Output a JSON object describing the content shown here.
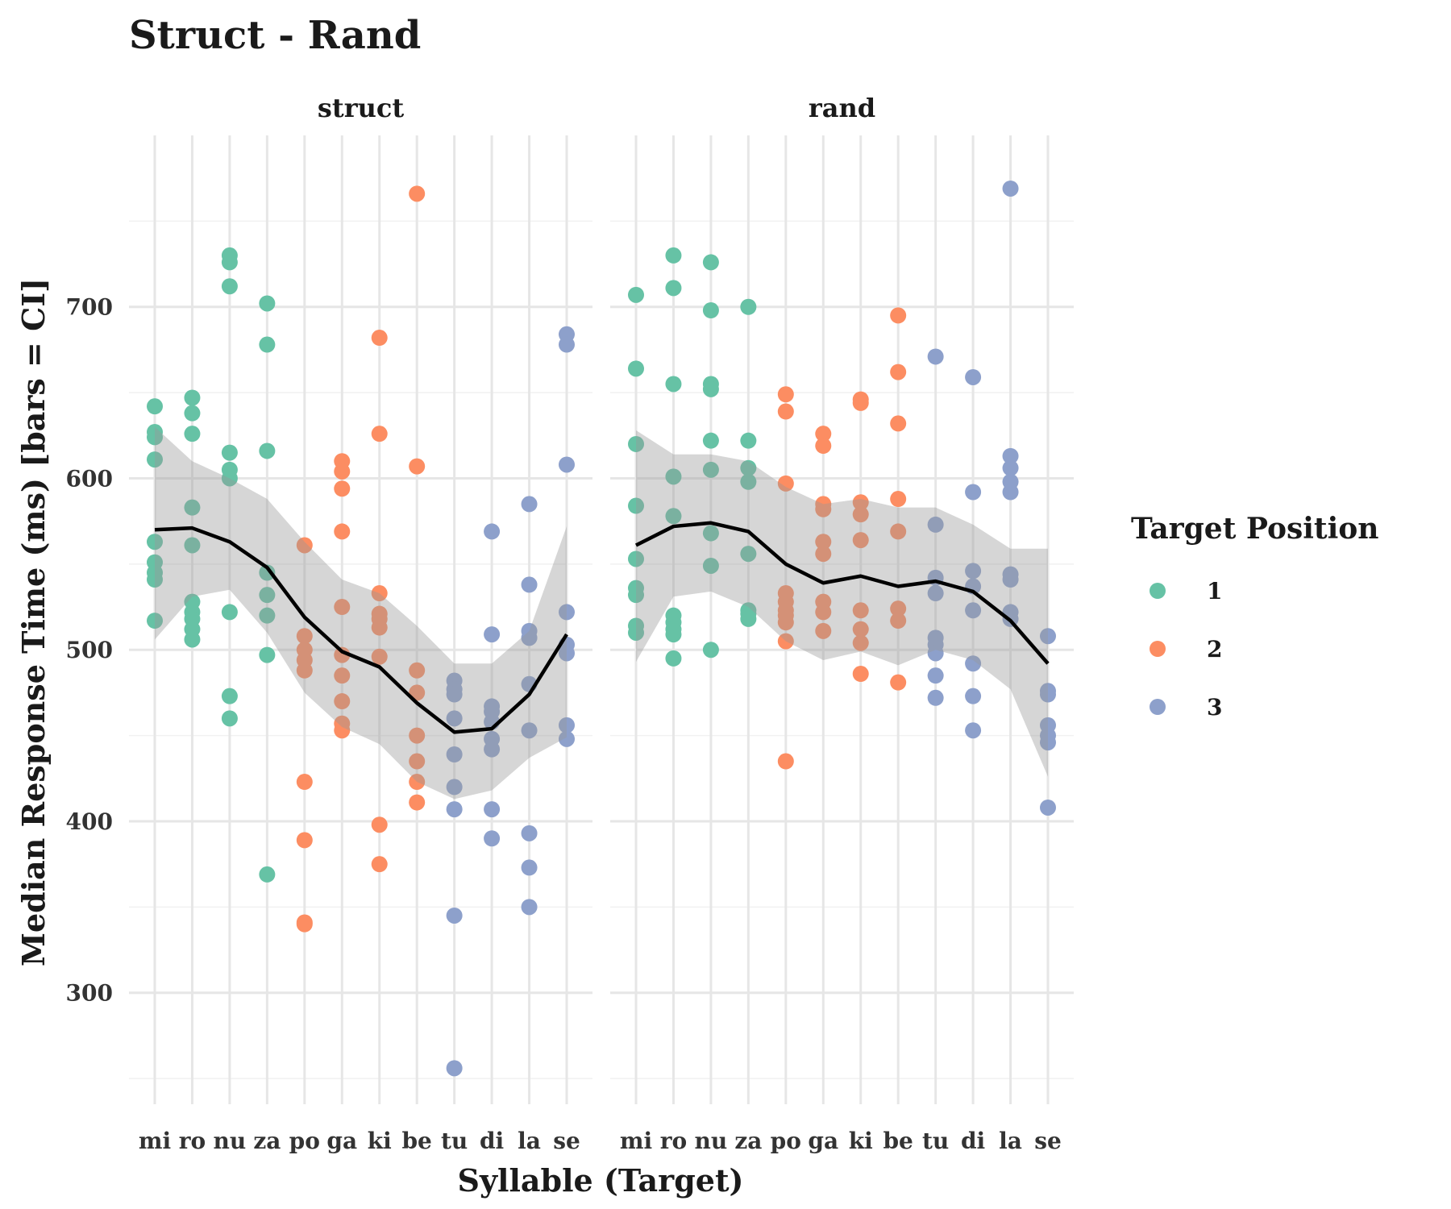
{
  "chart_data": {
    "type": "scatter",
    "title": "Struct - Rand",
    "xlabel": "Syllable (Target)",
    "ylabel": "Median Response Time (ms) [bars = CI]",
    "ylim": [
      235,
      800
    ],
    "y_ticks": [
      300,
      400,
      500,
      600,
      700
    ],
    "grid": true,
    "legend": {
      "title": "Target Position",
      "placement": "right",
      "entries": [
        {
          "label": "1",
          "color": "#66c2a5"
        },
        {
          "label": "2",
          "color": "#fc8d62"
        },
        {
          "label": "3",
          "color": "#8da0cb"
        }
      ]
    },
    "categories": [
      "mi",
      "ro",
      "nu",
      "za",
      "po",
      "ga",
      "ki",
      "be",
      "tu",
      "di",
      "la",
      "se"
    ],
    "panels": [
      {
        "strip": "struct",
        "points": [
          {
            "x": "mi",
            "group": "1",
            "y": [
              642,
              627,
              624,
              611,
              563,
              551,
              545,
              541,
              517
            ]
          },
          {
            "x": "ro",
            "group": "1",
            "y": [
              647,
              638,
              626,
              583,
              561,
              528,
              522,
              518,
              512,
              506
            ]
          },
          {
            "x": "nu",
            "group": "1",
            "y": [
              730,
              726,
              712,
              615,
              605,
              600,
              522,
              473,
              460
            ]
          },
          {
            "x": "za",
            "group": "1",
            "y": [
              702,
              678,
              616,
              545,
              532,
              520,
              497,
              369
            ]
          },
          {
            "x": "po",
            "group": "2",
            "y": [
              561,
              508,
              500,
              494,
              488,
              423,
              389,
              341,
              340
            ]
          },
          {
            "x": "ga",
            "group": "2",
            "y": [
              610,
              604,
              594,
              569,
              525,
              497,
              485,
              470,
              457,
              453
            ]
          },
          {
            "x": "ki",
            "group": "2",
            "y": [
              682,
              626,
              533,
              521,
              518,
              513,
              496,
              398,
              375
            ]
          },
          {
            "x": "be",
            "group": "2",
            "y": [
              766,
              607,
              488,
              475,
              450,
              435,
              423,
              411
            ]
          },
          {
            "x": "tu",
            "group": "3",
            "y": [
              482,
              477,
              474,
              460,
              439,
              420,
              407,
              345,
              256
            ]
          },
          {
            "x": "di",
            "group": "3",
            "y": [
              569,
              509,
              467,
              464,
              458,
              448,
              442,
              407,
              390
            ]
          },
          {
            "x": "la",
            "group": "3",
            "y": [
              585,
              538,
              511,
              507,
              480,
              453,
              393,
              373,
              350
            ]
          },
          {
            "x": "se",
            "group": "3",
            "y": [
              684,
              678,
              608,
              522,
              503,
              498,
              456,
              448
            ]
          }
        ],
        "mean_line": [
          570,
          571,
          563,
          548,
          519,
          499,
          490,
          469,
          452,
          454,
          474,
          509
        ],
        "ci_lower": [
          506,
          531,
          535,
          510,
          475,
          455,
          445,
          423,
          413,
          418,
          437,
          449
        ],
        "ci_upper": [
          630,
          610,
          600,
          588,
          563,
          541,
          533,
          514,
          492,
          492,
          511,
          572
        ]
      },
      {
        "strip": "rand",
        "points": [
          {
            "x": "mi",
            "group": "1",
            "y": [
              707,
              664,
              620,
              584,
              553,
              536,
              532,
              514,
              510
            ]
          },
          {
            "x": "ro",
            "group": "1",
            "y": [
              730,
              711,
              655,
              601,
              578,
              520,
              516,
              512,
              509,
              495
            ]
          },
          {
            "x": "nu",
            "group": "1",
            "y": [
              726,
              698,
              655,
              652,
              622,
              605,
              568,
              549,
              500
            ]
          },
          {
            "x": "za",
            "group": "1",
            "y": [
              700,
              622,
              606,
              598,
              556,
              523,
              521,
              518
            ]
          },
          {
            "x": "po",
            "group": "2",
            "y": [
              649,
              639,
              597,
              533,
              528,
              523,
              520,
              516,
              505,
              435
            ]
          },
          {
            "x": "ga",
            "group": "2",
            "y": [
              626,
              619,
              585,
              582,
              563,
              556,
              528,
              522,
              511
            ]
          },
          {
            "x": "ki",
            "group": "2",
            "y": [
              646,
              644,
              586,
              579,
              564,
              523,
              512,
              504,
              486
            ]
          },
          {
            "x": "be",
            "group": "2",
            "y": [
              695,
              662,
              632,
              588,
              569,
              524,
              517,
              481
            ]
          },
          {
            "x": "tu",
            "group": "3",
            "y": [
              671,
              573,
              542,
              533,
              507,
              503,
              498,
              485,
              472
            ]
          },
          {
            "x": "di",
            "group": "3",
            "y": [
              659,
              592,
              546,
              537,
              523,
              492,
              473,
              453
            ]
          },
          {
            "x": "la",
            "group": "3",
            "y": [
              769,
              613,
              606,
              598,
              592,
              544,
              541,
              522,
              518
            ]
          },
          {
            "x": "se",
            "group": "3",
            "y": [
              508,
              476,
              474,
              456,
              450,
              446,
              408
            ]
          }
        ],
        "mean_line": [
          561,
          572,
          574,
          569,
          550,
          539,
          543,
          537,
          540,
          534,
          517,
          492
        ],
        "ci_lower": [
          493,
          531,
          534,
          525,
          505,
          494,
          499,
          491,
          500,
          494,
          477,
          426
        ],
        "ci_upper": [
          628,
          614,
          614,
          610,
          595,
          585,
          588,
          583,
          583,
          573,
          559,
          559
        ]
      }
    ]
  }
}
